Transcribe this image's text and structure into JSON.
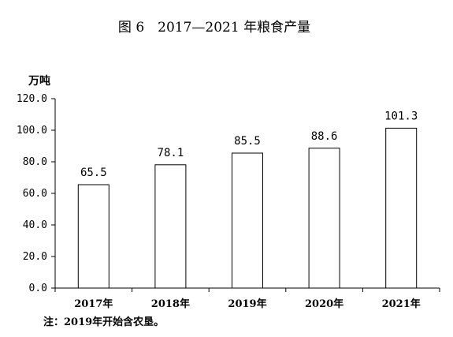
{
  "chart_data": {
    "type": "bar",
    "title": "图 6　2017—2021 年粮食产量",
    "ylabel": "万吨",
    "xlabel": "",
    "categories": [
      "2017年",
      "2018年",
      "2019年",
      "2020年",
      "2021年"
    ],
    "values": [
      65.5,
      78.1,
      85.5,
      88.6,
      101.3
    ],
    "data_labels": [
      "65.5",
      "78.1",
      "85.5",
      "88.6",
      "101.3"
    ],
    "ylim": [
      0,
      120
    ],
    "yticks": [
      "0.0",
      "20.0",
      "40.0",
      "60.0",
      "80.0",
      "100.0",
      "120.0"
    ],
    "ytick_values": [
      0,
      20,
      40,
      60,
      80,
      100,
      120
    ],
    "grid": false,
    "bar_fill": "#ffffff",
    "bar_stroke": "#000000",
    "note": "注：2019年开始含农垦。"
  }
}
